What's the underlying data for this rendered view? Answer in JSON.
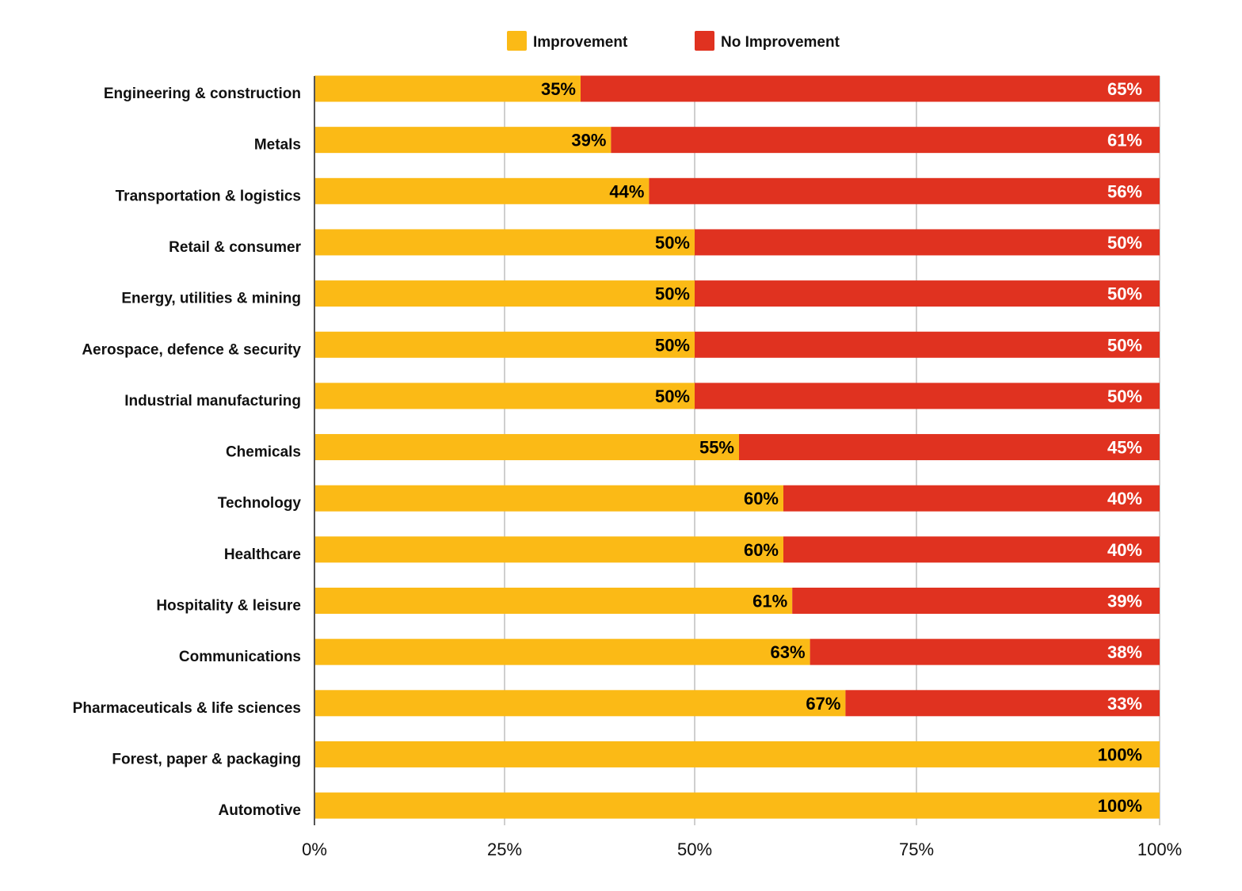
{
  "chart_data": {
    "type": "bar",
    "stacked": true,
    "orientation": "horizontal",
    "title": "",
    "xlabel": "",
    "ylabel": "",
    "xlim": [
      0,
      100
    ],
    "x_ticks": [
      "0%",
      "25%",
      "50%",
      "75%",
      "100%"
    ],
    "x_tick_values": [
      0,
      25,
      50,
      75,
      100
    ],
    "grid": true,
    "legend_position": "top-center",
    "categories": [
      "Engineering & construction",
      "Metals",
      "Transportation & logistics",
      "Retail & consumer",
      "Energy, utilities & mining",
      "Aerospace, defence & security",
      "Industrial manufacturing",
      "Chemicals",
      "Technology",
      "Healthcare",
      "Hospitality & leisure",
      "Communications",
      "Pharmaceuticals & life sciences",
      "Forest, paper & packaging",
      "Automotive"
    ],
    "series": [
      {
        "name": "Improvement",
        "color": "#FBBA16",
        "label_color": "#000000",
        "values": [
          35,
          39,
          44,
          50,
          50,
          50,
          50,
          55,
          60,
          60,
          61,
          63,
          67,
          100,
          100
        ]
      },
      {
        "name": "No Improvement",
        "color": "#E03220",
        "label_color": "#FFFFFF",
        "values": [
          65,
          61,
          56,
          50,
          50,
          50,
          50,
          45,
          40,
          40,
          39,
          38,
          33,
          0,
          0
        ]
      }
    ]
  }
}
